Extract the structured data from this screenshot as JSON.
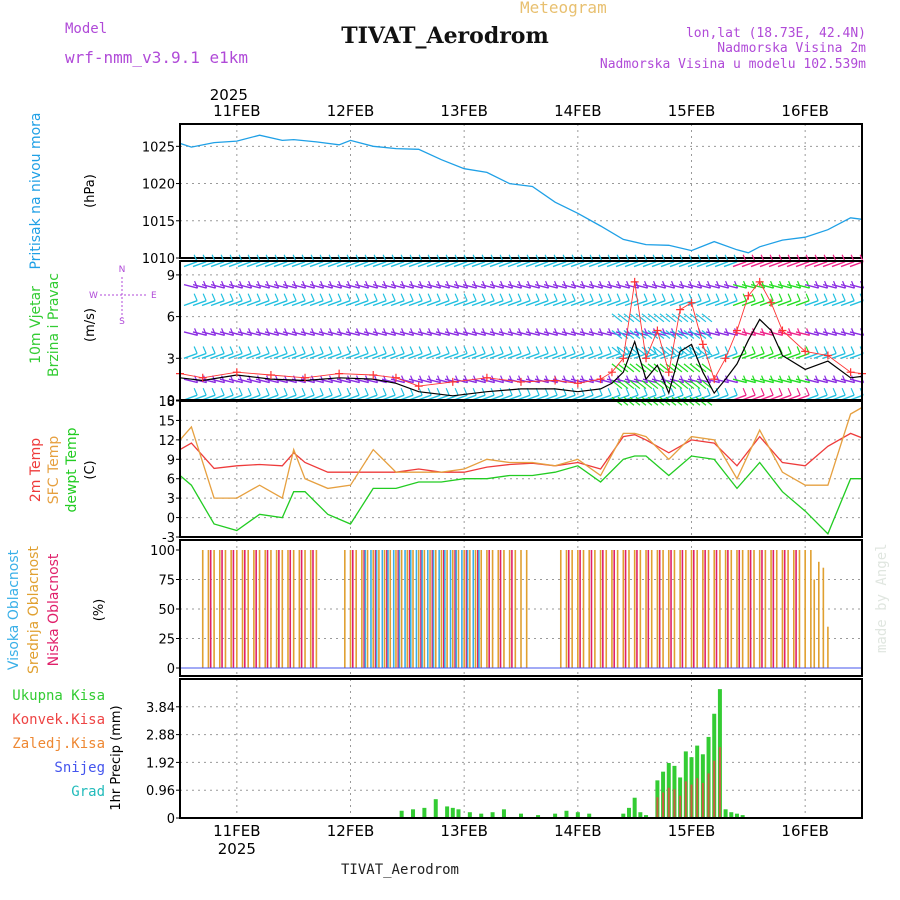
{
  "header": {
    "model_label": "Model",
    "model_name": "wrf-nmm_v3.9.1 e1km",
    "meteogram_label": "Meteogram",
    "station": "TIVAT_Aerodrom",
    "lonlat": "lon,lat (18.73E, 42.4N)",
    "altitude": "Nadmorska Visina 2m",
    "model_altitude": "Nadmorska Visina u modelu 102.539m",
    "footer_station": "TIVAT_Aerodrom",
    "watermark": "made by Angel"
  },
  "colors": {
    "pressure": "#1fa0e6",
    "wind_speed": "#000000",
    "gust": "#ff3333",
    "temp2m": "#ee3b3b",
    "sfc_temp": "#e6a040",
    "dewpoint": "#22cc22",
    "high_cloud": "#3ab0e8",
    "mid_cloud": "#e0a030",
    "low_cloud": "#e0206a",
    "total_precip": "#33cc33",
    "conv_precip": "#ee4444",
    "frozen_precip": "#ee8833",
    "snow": "#4455ee",
    "grad": "#22bbbb",
    "barb_cyan": "#20c0e0",
    "barb_purple": "#8a2be2",
    "barb_blue": "#3344ee",
    "barb_green": "#22dd22",
    "barb_pink": "#ee2288"
  },
  "chart_data": [
    {
      "type": "line",
      "panel": "pressure",
      "ylabel_main": "Pritisak na nivou mora",
      "ylabel_unit": "(hPa)",
      "x_top_year": "2025",
      "x_ticks": [
        "11FEB",
        "12FEB",
        "13FEB",
        "14FEB",
        "15FEB",
        "16FEB"
      ],
      "ylim": [
        1010,
        1028
      ],
      "yticks": [
        "1010",
        "1015",
        "1020",
        "1025"
      ],
      "x_days": [
        0.5,
        0.6,
        0.8,
        1.0,
        1.2,
        1.4,
        1.5,
        1.7,
        1.9,
        2.0,
        2.2,
        2.4,
        2.6,
        2.8,
        3.0,
        3.2,
        3.4,
        3.6,
        3.8,
        4.0,
        4.2,
        4.4,
        4.6,
        4.8,
        5.0,
        5.2,
        5.4,
        5.5,
        5.6,
        5.8,
        6.0,
        6.2,
        6.4,
        6.5
      ],
      "values": [
        1025.4,
        1024.9,
        1025.5,
        1025.7,
        1026.5,
        1025.8,
        1025.9,
        1025.6,
        1025.2,
        1025.8,
        1025.0,
        1024.7,
        1024.6,
        1023.2,
        1022.0,
        1021.5,
        1020.0,
        1019.6,
        1017.5,
        1016.0,
        1014.3,
        1012.5,
        1011.8,
        1011.7,
        1011.0,
        1012.2,
        1011.1,
        1010.7,
        1011.5,
        1012.4,
        1012.8,
        1013.8,
        1015.4,
        1015.2
      ]
    },
    {
      "type": "line",
      "panel": "wind",
      "ylabel_main": "10m Vjetar",
      "ylabel_sub": "Brzina i Pravac",
      "ylabel_unit": "(m/s)",
      "compass": [
        "N",
        "W",
        "E",
        "S"
      ],
      "ylim": [
        0,
        10
      ],
      "yticks": [
        "0",
        "3",
        "6",
        "9"
      ],
      "barb_levels_ms": [
        0,
        1.5,
        3.0,
        4.9,
        6.8,
        8.3,
        9.6
      ],
      "series": [
        {
          "name": "speed",
          "x_days": [
            0.5,
            0.7,
            1.0,
            1.3,
            1.6,
            1.9,
            2.2,
            2.4,
            2.6,
            2.9,
            3.2,
            3.5,
            3.8,
            4.0,
            4.2,
            4.3,
            4.4,
            4.5,
            4.6,
            4.7,
            4.8,
            4.9,
            5.0,
            5.1,
            5.2,
            5.3,
            5.4,
            5.5,
            5.6,
            5.7,
            5.8,
            6.0,
            6.2,
            6.4,
            6.5
          ],
          "values": [
            1.6,
            1.4,
            1.8,
            1.5,
            1.4,
            1.6,
            1.5,
            1.2,
            0.6,
            0.3,
            0.6,
            0.8,
            0.8,
            0.6,
            0.8,
            1.2,
            2.0,
            4.2,
            1.5,
            2.5,
            0.5,
            3.5,
            4.0,
            2.0,
            0.5,
            1.5,
            2.6,
            4.3,
            5.8,
            5.0,
            3.2,
            2.2,
            2.8,
            1.6,
            1.7
          ]
        },
        {
          "name": "gust",
          "x_days": [
            0.5,
            0.7,
            1.0,
            1.3,
            1.6,
            1.9,
            2.2,
            2.4,
            2.6,
            2.9,
            3.2,
            3.5,
            3.8,
            4.0,
            4.2,
            4.3,
            4.4,
            4.5,
            4.6,
            4.7,
            4.8,
            4.9,
            5.0,
            5.1,
            5.2,
            5.3,
            5.4,
            5.5,
            5.6,
            5.7,
            5.8,
            6.0,
            6.2,
            6.4,
            6.5
          ],
          "values": [
            1.9,
            1.6,
            2.0,
            1.8,
            1.6,
            1.9,
            1.8,
            1.6,
            1.0,
            1.3,
            1.6,
            1.3,
            1.4,
            1.2,
            1.5,
            2.0,
            3.0,
            8.5,
            3.0,
            5.0,
            2.0,
            6.5,
            7.0,
            4.0,
            1.5,
            3.0,
            5.0,
            7.5,
            8.5,
            7.0,
            5.0,
            3.5,
            3.2,
            2.0,
            1.9
          ]
        }
      ]
    },
    {
      "type": "line",
      "panel": "temperature",
      "ylabel_main": "2m Temp",
      "ylabel_sub": "SFC Temp",
      "ylabel_sub2": "dewpt Temp",
      "ylabel_unit": "(C)",
      "ylim": [
        -3,
        18
      ],
      "yticks": [
        "-3",
        "0",
        "3",
        "6",
        "9",
        "12",
        "15",
        "18"
      ],
      "series": [
        {
          "name": "2m Temp",
          "x_days": [
            0.5,
            0.6,
            0.8,
            1.0,
            1.2,
            1.4,
            1.5,
            1.6,
            1.8,
            2.0,
            2.2,
            2.4,
            2.6,
            2.8,
            3.0,
            3.2,
            3.4,
            3.6,
            3.8,
            4.0,
            4.2,
            4.4,
            4.5,
            4.6,
            4.8,
            5.0,
            5.2,
            5.4,
            5.6,
            5.8,
            6.0,
            6.2,
            6.4,
            6.5
          ],
          "values": [
            10.5,
            11.5,
            7.6,
            8.0,
            8.2,
            8.0,
            10.0,
            8.5,
            7.0,
            7.0,
            7.0,
            7.0,
            7.5,
            7.0,
            7.0,
            7.8,
            8.2,
            8.4,
            8.0,
            8.5,
            7.5,
            12.5,
            12.8,
            12.0,
            10.0,
            12.0,
            11.5,
            8.0,
            12.5,
            8.5,
            8.0,
            11.0,
            13.0,
            12.3
          ]
        },
        {
          "name": "SFC Temp",
          "x_days": [
            0.5,
            0.6,
            0.8,
            1.0,
            1.2,
            1.4,
            1.5,
            1.6,
            1.8,
            2.0,
            2.2,
            2.4,
            2.6,
            2.8,
            3.0,
            3.2,
            3.4,
            3.6,
            3.8,
            4.0,
            4.2,
            4.4,
            4.5,
            4.6,
            4.8,
            5.0,
            5.2,
            5.4,
            5.6,
            5.8,
            6.0,
            6.2,
            6.4,
            6.5
          ],
          "values": [
            12.0,
            14.0,
            3.0,
            3.0,
            5.0,
            3.0,
            10.5,
            6.0,
            4.5,
            5.0,
            10.5,
            7.0,
            7.0,
            7.0,
            7.5,
            9.0,
            8.5,
            8.5,
            8.0,
            9.0,
            6.5,
            13.0,
            13.0,
            12.5,
            9.0,
            12.5,
            12.0,
            6.0,
            13.5,
            7.0,
            5.0,
            5.0,
            16.0,
            17.0
          ]
        },
        {
          "name": "dewpt Temp",
          "x_days": [
            0.5,
            0.6,
            0.8,
            1.0,
            1.2,
            1.4,
            1.5,
            1.6,
            1.8,
            2.0,
            2.2,
            2.4,
            2.6,
            2.8,
            3.0,
            3.2,
            3.4,
            3.6,
            3.8,
            4.0,
            4.2,
            4.4,
            4.5,
            4.6,
            4.8,
            5.0,
            5.2,
            5.4,
            5.6,
            5.8,
            6.0,
            6.2,
            6.4,
            6.5
          ],
          "values": [
            6.5,
            5.0,
            -1.0,
            -2.0,
            0.5,
            0.0,
            4.0,
            4.0,
            0.5,
            -1.0,
            4.5,
            4.5,
            5.5,
            5.5,
            6.0,
            6.0,
            6.5,
            6.5,
            7.0,
            8.0,
            5.5,
            9.0,
            9.5,
            9.5,
            6.5,
            9.5,
            9.0,
            4.5,
            8.5,
            4.0,
            1.0,
            -2.5,
            6.0,
            6.0
          ]
        }
      ]
    },
    {
      "type": "bar",
      "panel": "clouds",
      "ylabel_main": "Visoka Oblacnost",
      "ylabel_sub": "Srednja Oblacnost",
      "ylabel_sub2": "Niska Oblacnost",
      "ylabel_unit": "(%)",
      "ylim": [
        0,
        100
      ],
      "yticks": [
        "0",
        "25",
        "50",
        "75",
        "100"
      ],
      "mid_cloud_100_range_days": [
        [
          0.7,
          1.75
        ],
        [
          1.95,
          3.55
        ],
        [
          3.85,
          6.05
        ]
      ],
      "low_cloud_100_range_days": [
        [
          0.75,
          1.75
        ],
        [
          2.0,
          3.5
        ],
        [
          3.9,
          5.9
        ]
      ],
      "high_cloud_100_range_days": [
        [
          2.1,
          3.1
        ]
      ],
      "tail_values_mid": [
        75,
        90,
        85,
        35
      ],
      "tail_x_days": [
        6.08,
        6.12,
        6.16,
        6.2
      ]
    },
    {
      "type": "bar",
      "panel": "precip",
      "legend": [
        "Ukupna Kisa",
        "Konvek.Kisa",
        "Zaledj.Kisa",
        "Snijeg",
        "Grad"
      ],
      "ylabel_unit": "1hr Precip (mm)",
      "ylim": [
        0,
        4.8
      ],
      "yticks": [
        "0",
        "0.96",
        "1.92",
        "2.88",
        "3.84"
      ],
      "x_ticks": [
        "11FEB",
        "12FEB",
        "13FEB",
        "14FEB",
        "15FEB",
        "16FEB"
      ],
      "x_bottom_year": "2025",
      "x_days": [
        2.45,
        2.55,
        2.65,
        2.75,
        2.85,
        2.9,
        2.95,
        3.05,
        3.15,
        3.25,
        3.35,
        3.5,
        3.65,
        3.8,
        3.9,
        4.0,
        4.1,
        4.4,
        4.45,
        4.5,
        4.55,
        4.6,
        4.7,
        4.75,
        4.8,
        4.85,
        4.9,
        4.95,
        5.0,
        5.05,
        5.1,
        5.15,
        5.2,
        5.25,
        5.3,
        5.35,
        5.4,
        5.45
      ],
      "values": [
        0.25,
        0.3,
        0.35,
        0.65,
        0.4,
        0.35,
        0.3,
        0.2,
        0.15,
        0.2,
        0.3,
        0.15,
        0.1,
        0.15,
        0.25,
        0.2,
        0.15,
        0.15,
        0.35,
        0.7,
        0.2,
        0.1,
        1.3,
        1.6,
        1.9,
        1.8,
        1.4,
        2.3,
        2.1,
        2.5,
        2.2,
        2.8,
        3.6,
        4.45,
        0.3,
        0.2,
        0.15,
        0.1
      ]
    }
  ]
}
